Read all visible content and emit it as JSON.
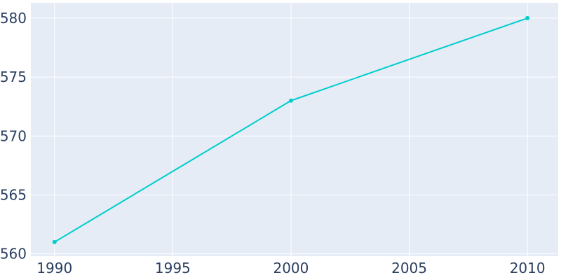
{
  "chart_data": {
    "type": "line",
    "x": [
      1990,
      2000,
      2010
    ],
    "series": [
      {
        "values": [
          561,
          573,
          580
        ]
      }
    ],
    "title": "",
    "xlabel": "",
    "ylabel": "",
    "xlim": [
      1989,
      2011.3
    ],
    "ylim": [
      559.8,
      581.3
    ],
    "xticks": [
      1990,
      1995,
      2000,
      2005,
      2010
    ],
    "yticks": [
      560,
      565,
      570,
      575,
      580
    ],
    "grid": true,
    "legend": "none",
    "colors": {
      "line": "#00CDCD",
      "plot_background": "#E5ECF6",
      "grid": "#FFFFFF",
      "tick_text": "#2A3F5F"
    }
  }
}
